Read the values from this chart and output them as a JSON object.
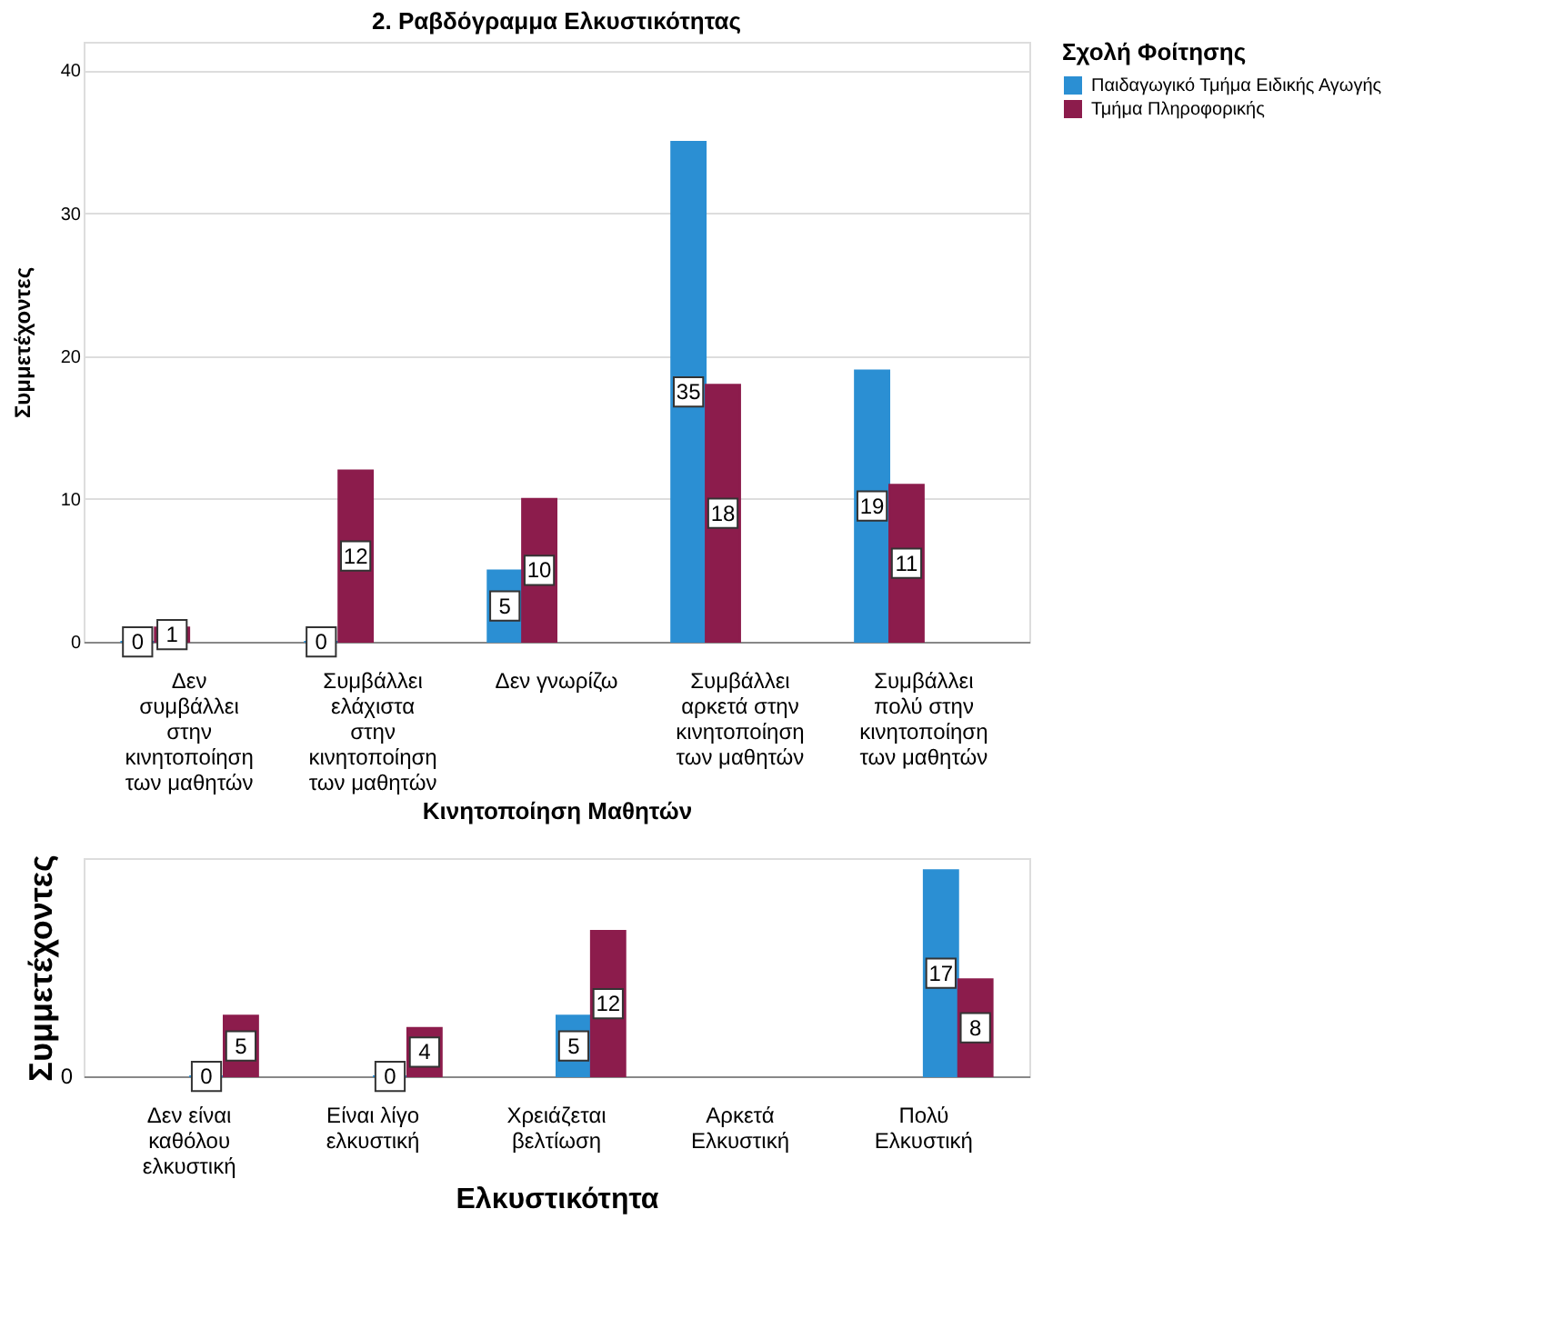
{
  "chart_data": [
    {
      "type": "bar",
      "title": "2. Ραβδόγραμμα Ελκυστικότητας",
      "xlabel": "Κινητοποίηση Μαθητών",
      "ylabel": "Συμμετέχοντες",
      "legend_title": "Σχολή Φοίτησης",
      "categories": [
        "Δεν συμβάλλει στην κινητοποίηση των μαθητών",
        "Συμβάλλει ελάχιστα στην κινητοποίηση των μαθητών",
        "Δεν γνωρίζω",
        "Συμβάλλει αρκετά στην κινητοποίηση των μαθητών",
        "Συμβάλλει πολύ στην κινητοποίηση των μαθητών"
      ],
      "series": [
        {
          "name": "Παιδαγωγικό Τμήμα Ειδικής Αγωγής",
          "color": "#2b8fd3",
          "values": [
            0,
            0,
            5,
            35,
            19
          ]
        },
        {
          "name": "Τμήμα Πληροφορικής",
          "color": "#8c1c4c",
          "values": [
            1,
            12,
            10,
            18,
            11
          ]
        }
      ],
      "ylim": [
        0,
        42
      ],
      "yticks": [
        0,
        10,
        20,
        30,
        40
      ],
      "grid": "y",
      "legend": "right",
      "data_labels": true
    },
    {
      "type": "bar",
      "xlabel": "Ελκυστικότητα",
      "ylabel": "Συμμετέχοντες",
      "categories": [
        "Δεν είναι καθόλου ελκυστική",
        "Είναι λίγο ελκυστική",
        "Χρειάζεται βελτίωση",
        "Αρκετά Ελκυστική",
        "Πολύ Ελκυστική"
      ],
      "series": [
        {
          "color": "#2b8fd3",
          "values": [
            0,
            0,
            5,
            null,
            17
          ]
        },
        {
          "color": "#8c1c4c",
          "values": [
            5,
            4,
            12,
            null,
            8
          ]
        }
      ],
      "ylim": [
        0,
        18
      ],
      "data_labels": true,
      "annotations": [
        "0"
      ]
    }
  ]
}
